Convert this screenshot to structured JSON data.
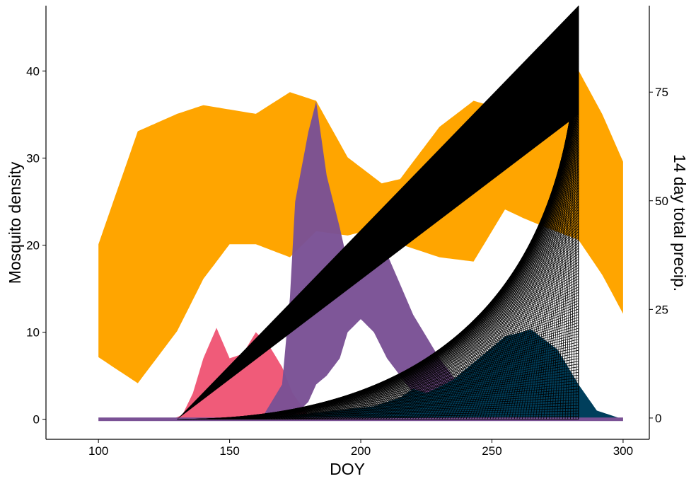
{
  "chart_data": {
    "type": "area",
    "xlabel": "DOY",
    "ylabel": "Mosquito density",
    "y2label": "14 day total precip.",
    "xlim": [
      80,
      310
    ],
    "ylim": [
      -2.3,
      47.5
    ],
    "y2lim": [
      -4.9,
      94.9
    ],
    "x_ticks": [
      "100",
      "150",
      "200",
      "250",
      "300"
    ],
    "y_ticks": [
      "0",
      "10",
      "20",
      "30",
      "40"
    ],
    "y2_ticks": [
      "0",
      "25",
      "50",
      "75"
    ],
    "grid": false,
    "colors": {
      "precip": "#FFA500",
      "pink": "#EF5675",
      "purple": "#7A5195",
      "navy": "#003F5C",
      "ink": "#000000"
    },
    "precip_band": {
      "axis": "right",
      "x": [
        100,
        115,
        130,
        140,
        150,
        160,
        173,
        183,
        195,
        208,
        215,
        230,
        243,
        255,
        262,
        270,
        283,
        292,
        300
      ],
      "upper": [
        40,
        66,
        70,
        72,
        71,
        70,
        75,
        73,
        60,
        54,
        55,
        67,
        73,
        71,
        76,
        86,
        80,
        70,
        59
      ],
      "lower": [
        14,
        8,
        20,
        32,
        40,
        40,
        37,
        43,
        42,
        44,
        40,
        37,
        36,
        48,
        46,
        44,
        41,
        33,
        24
      ]
    },
    "mosquito_series": [
      {
        "color": "#EF5675",
        "x": [
          100,
          128,
          132,
          136,
          140,
          145,
          150,
          155,
          160,
          165,
          170,
          174,
          180,
          195,
          215,
          225,
          235,
          300
        ],
        "upper": [
          0,
          0,
          0.5,
          3,
          7,
          10.5,
          7,
          7.5,
          10,
          8.5,
          6,
          3,
          0.5,
          0.2,
          0.2,
          0.2,
          0,
          0
        ],
        "lower": [
          0,
          0,
          0,
          0,
          0,
          0,
          0,
          0,
          0,
          0,
          0,
          0,
          0,
          0,
          0,
          0,
          0,
          0
        ]
      },
      {
        "color": "#7A5195",
        "x": [
          100,
          155,
          163,
          170,
          173,
          175,
          180,
          183,
          187,
          192,
          195,
          200,
          205,
          210,
          220,
          230,
          240,
          250,
          255,
          300
        ],
        "upper": [
          0,
          0,
          0.5,
          4,
          14,
          25,
          33,
          36.5,
          28,
          22,
          18,
          18,
          22,
          19,
          12,
          7,
          3,
          0.5,
          0,
          0
        ],
        "lower": [
          0,
          0,
          0,
          0,
          0,
          0.5,
          2,
          4,
          5,
          7,
          10,
          11.5,
          10,
          7,
          3,
          0.5,
          0,
          0,
          0,
          0
        ]
      },
      {
        "color": "#003F5C",
        "x": [
          100,
          160,
          175,
          190,
          205,
          215,
          220,
          225,
          235,
          245,
          255,
          265,
          275,
          283,
          290,
          300
        ],
        "upper": [
          0,
          0,
          0.5,
          1,
          1.5,
          2.5,
          3.5,
          3,
          4.5,
          7,
          9.5,
          10.3,
          8,
          4,
          1,
          0
        ],
        "lower": [
          0,
          0,
          0,
          0,
          0,
          0,
          0,
          0,
          0,
          0,
          0,
          0,
          0,
          0,
          0,
          0
        ]
      }
    ],
    "hatch_triangle": {
      "x": [
        130,
        283
      ],
      "y_bottom": 0,
      "y_top": 47.5
    }
  }
}
